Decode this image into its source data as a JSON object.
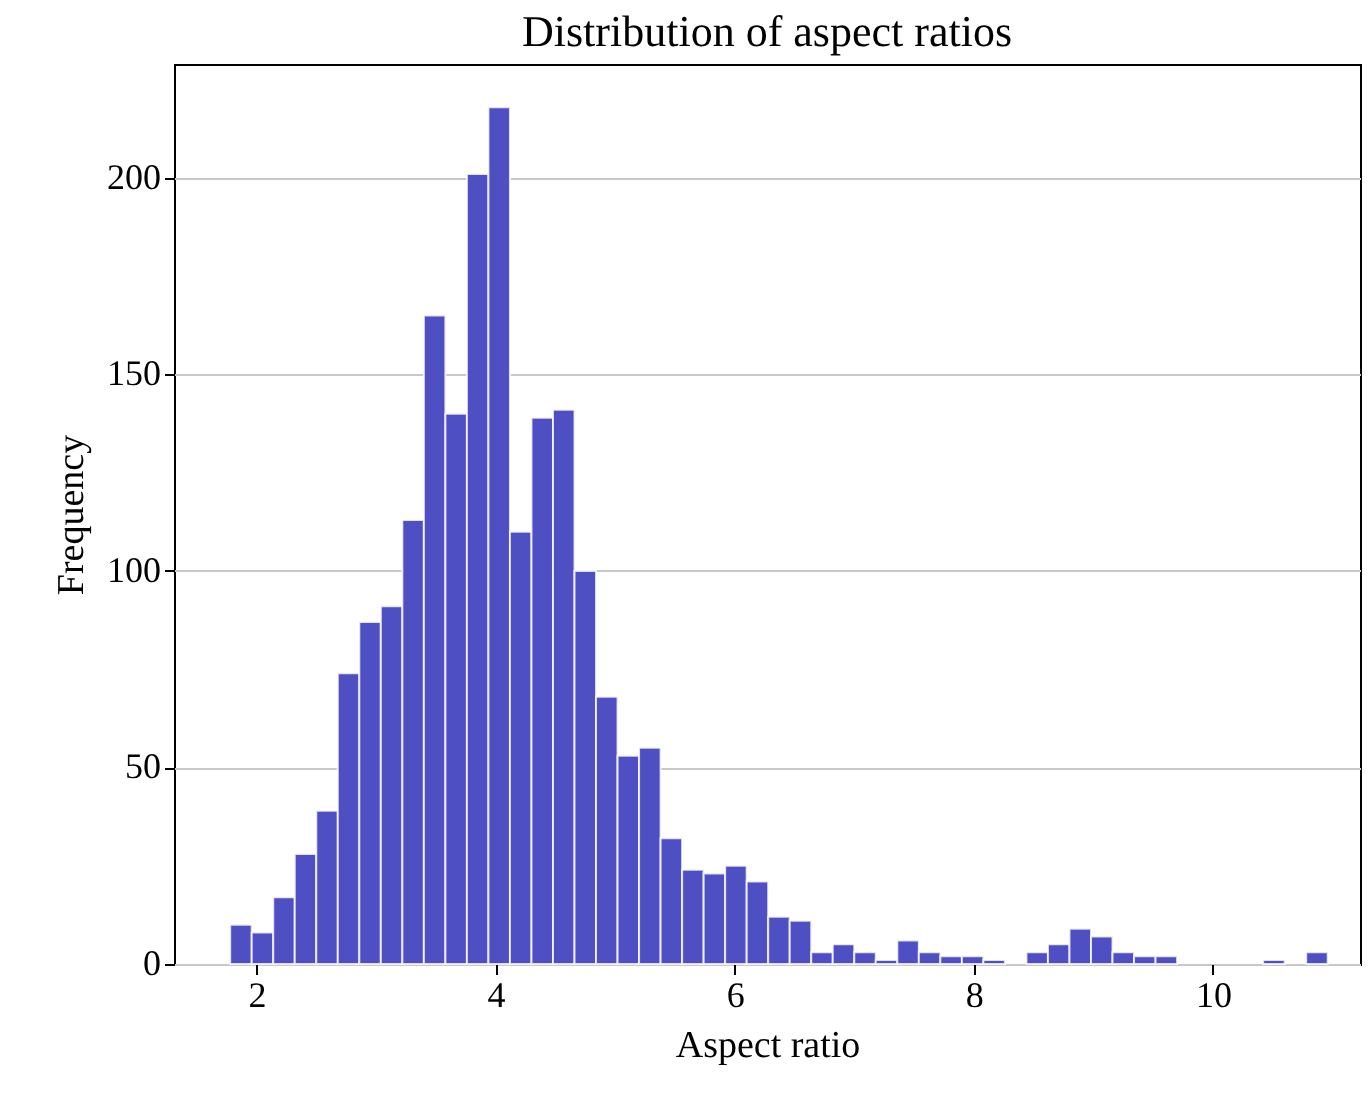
{
  "chart_data": {
    "type": "histogram",
    "title": "Distribution of aspect ratios",
    "xlabel": "Aspect ratio",
    "ylabel": "Frequency",
    "bins": [
      1.78,
      1.96,
      2.14,
      2.32,
      2.5,
      2.68,
      2.86,
      3.04,
      3.22,
      3.4,
      3.58,
      3.76,
      3.94,
      4.12,
      4.3,
      4.48,
      4.66,
      4.84,
      5.02,
      5.2,
      5.38,
      5.56,
      5.74,
      5.92,
      6.1,
      6.28,
      6.46,
      6.64,
      6.82,
      7.0,
      7.18,
      7.36,
      7.54,
      7.72,
      7.9,
      8.08,
      8.26,
      8.44,
      8.62,
      8.8,
      8.98,
      9.16,
      9.34,
      9.52,
      9.7,
      9.88,
      10.06,
      10.24,
      10.42,
      10.6,
      10.78,
      10.96
    ],
    "values": [
      10,
      8,
      17,
      28,
      39,
      74,
      87,
      91,
      113,
      165,
      140,
      201,
      218,
      110,
      139,
      141,
      100,
      68,
      53,
      55,
      32,
      24,
      23,
      25,
      21,
      12,
      11,
      3,
      5,
      3,
      1,
      6,
      3,
      2,
      2,
      1,
      0,
      3,
      5,
      9,
      7,
      3,
      2,
      2,
      0,
      0,
      0,
      0,
      1,
      0,
      3
    ],
    "color": "#4f4fc4",
    "xlim": [
      1.31,
      11.23
    ],
    "ylim": [
      0,
      229
    ],
    "xticks": [
      2,
      4,
      6,
      8,
      10
    ],
    "yticks": [
      0,
      50,
      100,
      150,
      200
    ],
    "grid": "y"
  }
}
